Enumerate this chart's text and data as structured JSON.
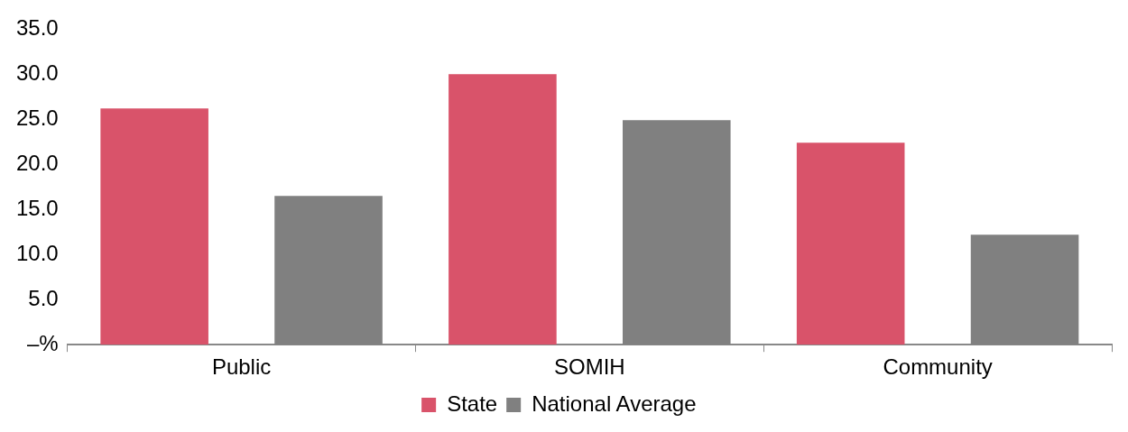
{
  "chart_data": {
    "type": "bar",
    "categories": [
      "Public",
      "SOMIH",
      "Community"
    ],
    "series": [
      {
        "name": "State",
        "color": "#d9536a",
        "values": [
          26.2,
          30.0,
          22.4
        ]
      },
      {
        "name": "National Average",
        "color": "#808080",
        "values": [
          16.5,
          24.9,
          12.2
        ]
      }
    ],
    "ylim": [
      0,
      35
    ],
    "yticks": [
      {
        "value": 0,
        "label": "–%"
      },
      {
        "value": 5,
        "label": "5.0"
      },
      {
        "value": 10,
        "label": "10.0"
      },
      {
        "value": 15,
        "label": "15.0"
      },
      {
        "value": 20,
        "label": "20.0"
      },
      {
        "value": 25,
        "label": "25.0"
      },
      {
        "value": 30,
        "label": "30.0"
      },
      {
        "value": 35,
        "label": "35.0"
      }
    ],
    "grid": false,
    "legend": "bottom"
  }
}
